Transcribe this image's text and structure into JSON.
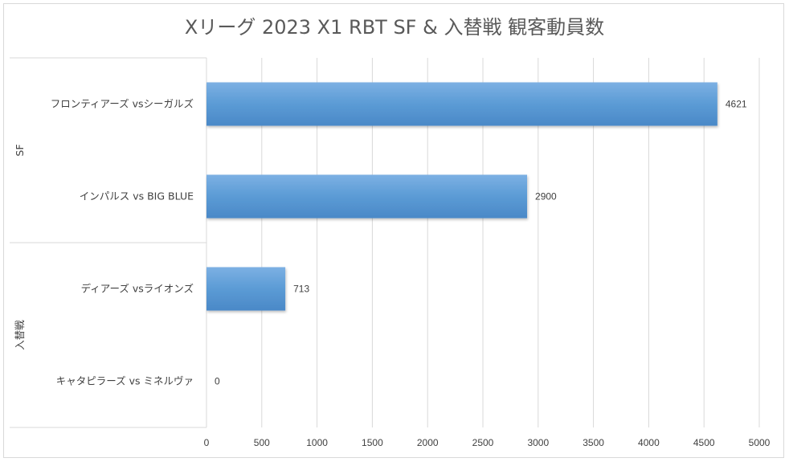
{
  "chart_data": {
    "type": "bar",
    "orientation": "horizontal",
    "title": "Xリーグ 2023 X1 RBT SF & 入替戦 観客動員数",
    "groups": [
      {
        "name": "SF",
        "categories": [
          "フロンティアーズ vsシーガルズ",
          "インパルス vs BIG BLUE"
        ]
      },
      {
        "name": "入替戦",
        "categories": [
          "ディアーズ vsライオンズ",
          "キャタピラーズ vs ミネルヴァ"
        ]
      }
    ],
    "categories": [
      "フロンティアーズ vsシーガルズ",
      "インパルス vs BIG BLUE",
      "ディアーズ vsライオンズ",
      "キャタピラーズ vs ミネルヴァ"
    ],
    "values": [
      4621,
      2900,
      713,
      0
    ],
    "data_labels": [
      "4621",
      "2900",
      "713",
      "0"
    ],
    "xlim": [
      0,
      5000
    ],
    "xticks": [
      "0",
      "500",
      "1000",
      "1500",
      "2000",
      "2500",
      "3000",
      "3500",
      "4000",
      "4500",
      "5000"
    ],
    "grid": true,
    "legend": "none",
    "bar_color": "#5b9bd5"
  }
}
